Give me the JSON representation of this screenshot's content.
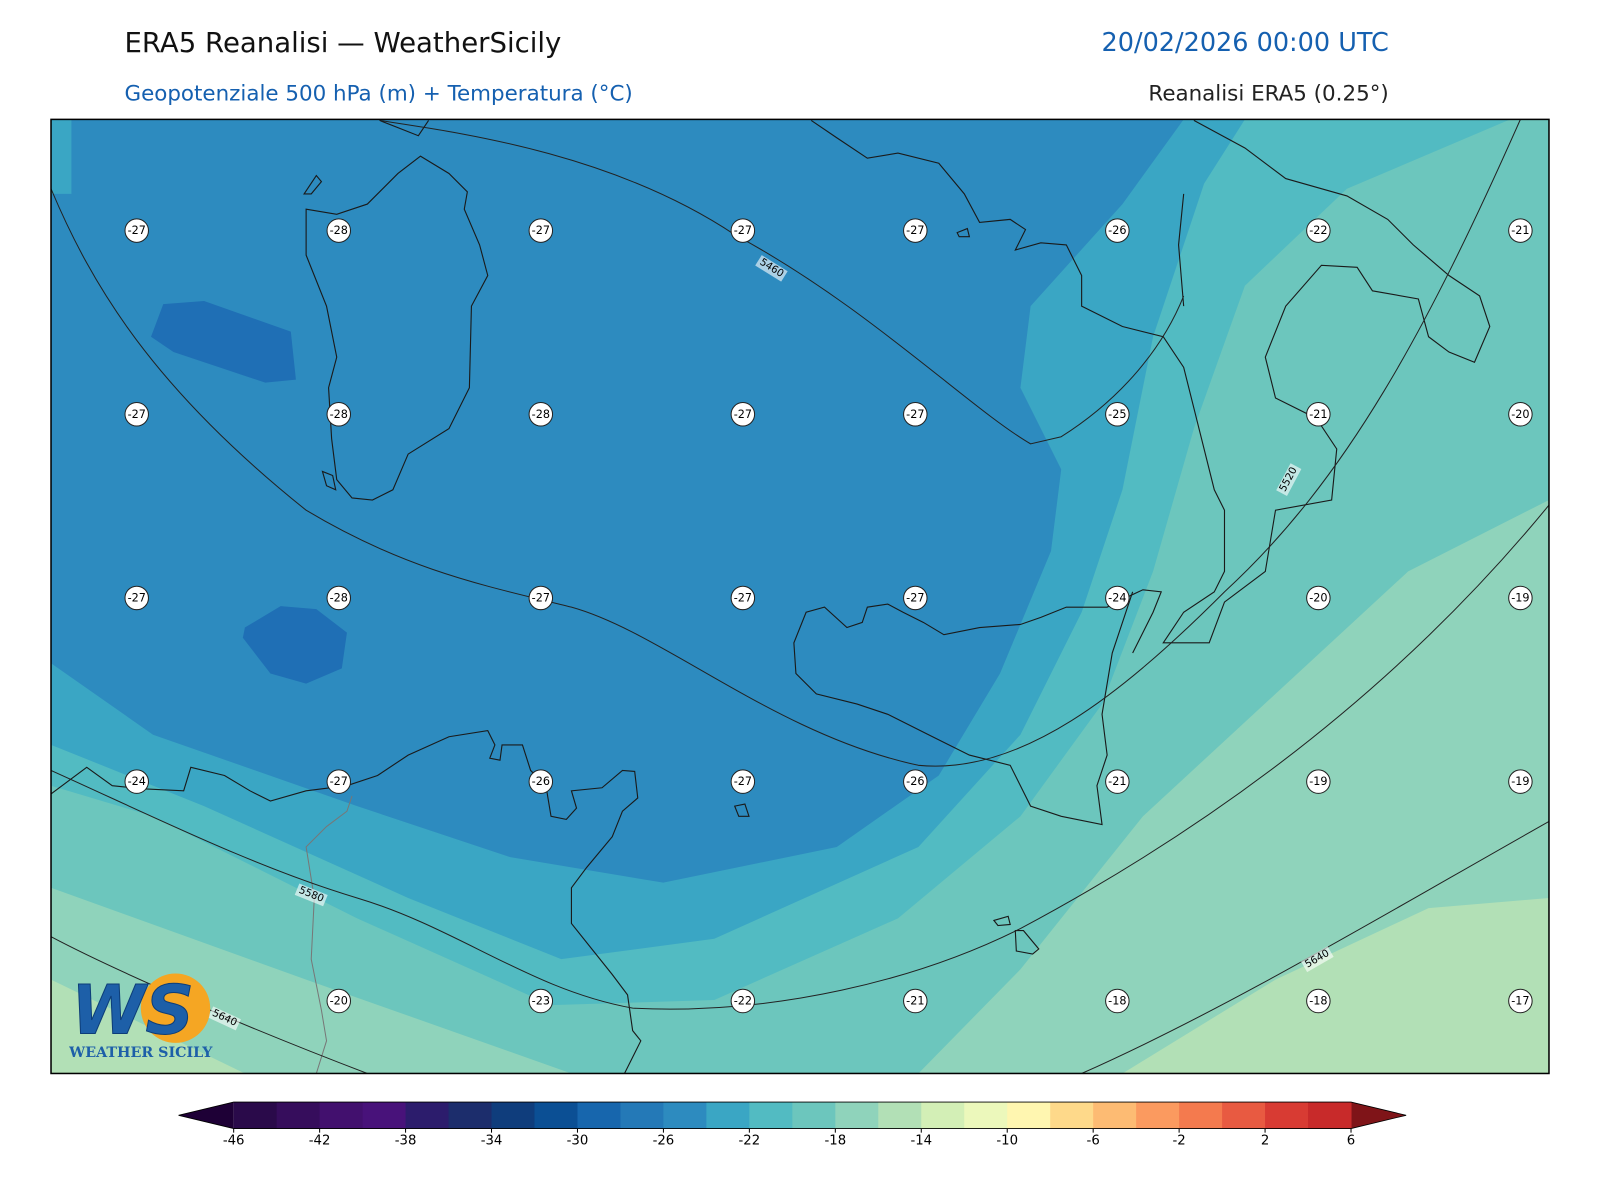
{
  "header": {
    "title": "ERA5 Reanalisi — WeatherSicily",
    "datetime": "20/02/2026 00:00 UTC",
    "subtitle": "Geopotenziale 500 hPa (m) + Temperatura (°C)",
    "source": "Reanalisi ERA5 (0.25°)"
  },
  "temperature_labels": {
    "rows": [
      [
        -27,
        -28,
        -27,
        -27,
        -27,
        -26,
        -22,
        -21
      ],
      [
        -27,
        -28,
        -28,
        -27,
        -27,
        -25,
        -21,
        -20
      ],
      [
        -27,
        -28,
        -27,
        -27,
        -27,
        -24,
        -20,
        -19
      ],
      [
        -24,
        -27,
        -26,
        -27,
        -26,
        -21,
        -19,
        -19
      ],
      [
        null,
        -20,
        -23,
        -22,
        -21,
        -18,
        -18,
        -17
      ]
    ]
  },
  "contour_labels": [
    5460,
    5520,
    5580,
    5640,
    5640
  ],
  "logo": {
    "mark": "WS",
    "name": "WEATHER SICILY"
  },
  "colorbar": {
    "range": [
      -46,
      6
    ],
    "ticks": [
      -46,
      -42,
      -38,
      -34,
      -30,
      -26,
      -22,
      -18,
      -14,
      -10,
      -6,
      -2,
      2,
      6
    ],
    "colors": [
      "#2a0a4a",
      "#360d5c",
      "#42106e",
      "#48127a",
      "#2c1c6c",
      "#1c2d6c",
      "#0f3d7c",
      "#0b4f94",
      "#1766ad",
      "#2479b7",
      "#2d8bbf",
      "#3aa6c4",
      "#52bbc2",
      "#6cc6bd",
      "#8fd3bb",
      "#b2e0b6",
      "#d3efb6",
      "#ecf8bb",
      "#fff6b0",
      "#fed98a",
      "#fdbb73",
      "#fb9a5f",
      "#f47a4e",
      "#e85a41",
      "#d83b33",
      "#c82a2a"
    ],
    "extend_colors": [
      "#1e0036",
      "#7f1418"
    ]
  }
}
